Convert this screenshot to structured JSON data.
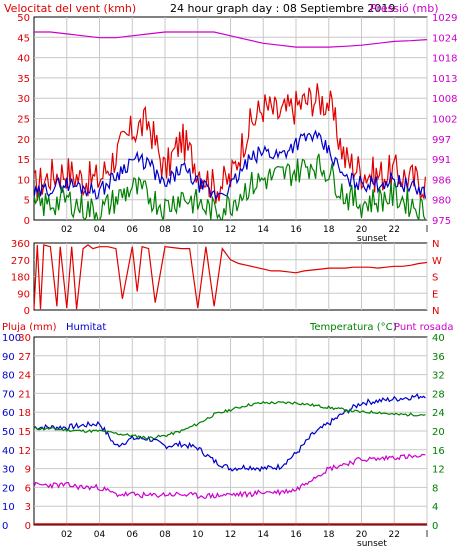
{
  "header": {
    "left_label": "Velocitat del vent (kmh)",
    "center_label": "24 hour graph day : 08 Septiembre 2019",
    "right_label": "Pressió (mb)"
  },
  "colors": {
    "wind": "#e00000",
    "avg_wind": "#0000cc",
    "gust_low": "#008000",
    "pressure": "#cc00cc",
    "direction": "#e00000",
    "humidity": "#0000cc",
    "temperature": "#008000",
    "dewpoint": "#cc00cc",
    "rain": "#e00000",
    "grid": "#c8c8c8"
  },
  "chart_data": [
    {
      "type": "line",
      "name": "wind-pressure",
      "xlabel": "",
      "sunset_label": "sunset",
      "x_ticks": [
        "02",
        "04",
        "06",
        "08",
        "10",
        "12",
        "14",
        "16",
        "18",
        "20",
        "22",
        "l"
      ],
      "ylabel_left": "Velocitat del vent (kmh)",
      "ylabel_right": "Pressió (mb)",
      "y_ticks_left": [
        0,
        5,
        10,
        15,
        20,
        25,
        30,
        35,
        40,
        45,
        50
      ],
      "y_ticks_right": [
        975,
        980,
        986,
        991,
        997,
        1002,
        1008,
        1013,
        1018,
        1024,
        1029
      ],
      "ylim_left": [
        0,
        50
      ],
      "ylim_right": [
        975,
        1029
      ],
      "hours": [
        0,
        1,
        2,
        3,
        4,
        5,
        6,
        7,
        8,
        9,
        10,
        11,
        12,
        13,
        14,
        15,
        16,
        17,
        18,
        19,
        20,
        21,
        22,
        23,
        24
      ],
      "series": [
        {
          "key": "gust",
          "values": [
            8,
            11,
            12,
            10,
            10,
            16,
            22,
            24,
            12,
            20,
            13,
            8,
            10,
            22,
            28,
            26,
            28,
            30,
            29,
            15,
            12,
            11,
            12,
            10,
            9
          ]
        },
        {
          "key": "avg",
          "values": [
            6,
            8,
            9,
            8,
            7,
            11,
            15,
            14,
            8,
            13,
            9,
            6,
            8,
            14,
            17,
            16,
            19,
            21,
            17,
            10,
            9,
            9,
            10,
            8,
            7
          ]
        },
        {
          "key": "low",
          "values": [
            3,
            4,
            5,
            3,
            2,
            5,
            8,
            6,
            3,
            6,
            4,
            2,
            4,
            8,
            10,
            11,
            12,
            14,
            12,
            6,
            4,
            5,
            6,
            4,
            2
          ]
        },
        {
          "key": "pressure",
          "values": [
            1025,
            1025,
            1024.5,
            1024,
            1023.5,
            1023.5,
            1024,
            1024.5,
            1025,
            1025,
            1025,
            1025,
            1024,
            1023,
            1022,
            1021.5,
            1021,
            1021,
            1021,
            1021.2,
            1021.5,
            1022,
            1022.5,
            1022.7,
            1023
          ]
        }
      ]
    },
    {
      "type": "line",
      "name": "wind-direction",
      "y_ticks": [
        0,
        90,
        180,
        270,
        360
      ],
      "y_ticks_right": [
        "N",
        "W",
        "S",
        "E",
        "N"
      ],
      "ylim": [
        0,
        360
      ],
      "hours": [
        0,
        0.2,
        0.4,
        0.6,
        1,
        1.4,
        1.6,
        2,
        2.3,
        2.6,
        3,
        3.3,
        3.6,
        4,
        4.5,
        5,
        5.4,
        6,
        6.3,
        6.6,
        7,
        7.4,
        8,
        9,
        9.5,
        10,
        10.5,
        11,
        11.5,
        12,
        12.5,
        13,
        13.5,
        14,
        14.5,
        15,
        15.5,
        16,
        16.5,
        17,
        17.5,
        18,
        18.5,
        19,
        19.5,
        20,
        20.5,
        21,
        21.5,
        22,
        22.5,
        23,
        23.5,
        24
      ],
      "values": [
        5,
        350,
        5,
        350,
        340,
        20,
        340,
        10,
        340,
        5,
        330,
        350,
        330,
        340,
        340,
        330,
        60,
        340,
        100,
        340,
        330,
        40,
        340,
        330,
        330,
        10,
        340,
        20,
        330,
        270,
        250,
        240,
        230,
        220,
        210,
        210,
        205,
        200,
        210,
        215,
        220,
        225,
        225,
        225,
        230,
        230,
        230,
        225,
        230,
        235,
        235,
        240,
        250,
        255
      ]
    },
    {
      "type": "line",
      "name": "humidity-temperature",
      "header_left": "Pluja (mm)",
      "header_mid": "Humitat",
      "header_right_a": "Temperatura (°C)",
      "header_right_b": "Punt rosada",
      "sunset_label": "sunset",
      "x_ticks": [
        "02",
        "04",
        "06",
        "08",
        "10",
        "12",
        "14",
        "16",
        "18",
        "20",
        "22",
        "l"
      ],
      "y_ticks_humidity": [
        0,
        10,
        20,
        30,
        40,
        50,
        60,
        70,
        80,
        90,
        100
      ],
      "y_ticks_rain": [
        0,
        3,
        6,
        9,
        12,
        15,
        18,
        21,
        24,
        27,
        30
      ],
      "y_ticks_temp": [
        0,
        4,
        8,
        12,
        16,
        20,
        24,
        28,
        32,
        36,
        40
      ],
      "ylim_humidity": [
        0,
        100
      ],
      "ylim_rain": [
        0,
        30
      ],
      "ylim_temp": [
        0,
        40
      ],
      "hours": [
        0,
        1,
        2,
        3,
        4,
        5,
        6,
        7,
        8,
        9,
        10,
        11,
        12,
        13,
        14,
        15,
        16,
        17,
        18,
        19,
        20,
        21,
        22,
        23,
        24
      ],
      "series": [
        {
          "key": "humidity",
          "values": [
            52,
            52,
            52,
            53,
            54,
            42,
            46,
            46,
            42,
            43,
            41,
            34,
            30,
            31,
            30,
            31,
            38,
            48,
            54,
            60,
            65,
            66,
            67,
            68,
            69
          ]
        },
        {
          "key": "temperature",
          "values": [
            20.5,
            20.5,
            20.2,
            20,
            20,
            19.5,
            19,
            18.5,
            19,
            20,
            21.5,
            23.5,
            24.5,
            25.5,
            26,
            26,
            26,
            25.5,
            25,
            24.5,
            24,
            24,
            23.5,
            23.5,
            23.5
          ]
        },
        {
          "key": "dewpoint",
          "values": [
            8.5,
            8.5,
            8.5,
            8,
            8,
            6.5,
            6.5,
            6.2,
            6.5,
            6.5,
            6.2,
            6.2,
            6.5,
            6.5,
            7,
            7,
            7.5,
            10,
            12,
            13,
            14,
            14,
            14.5,
            14.5,
            14.5
          ]
        },
        {
          "key": "rain",
          "values": [
            0,
            0,
            0,
            0,
            0,
            0,
            0,
            0,
            0,
            0,
            0,
            0,
            0,
            0,
            0,
            0,
            0,
            0,
            0,
            0,
            0,
            0,
            0,
            0,
            0
          ]
        }
      ]
    }
  ]
}
